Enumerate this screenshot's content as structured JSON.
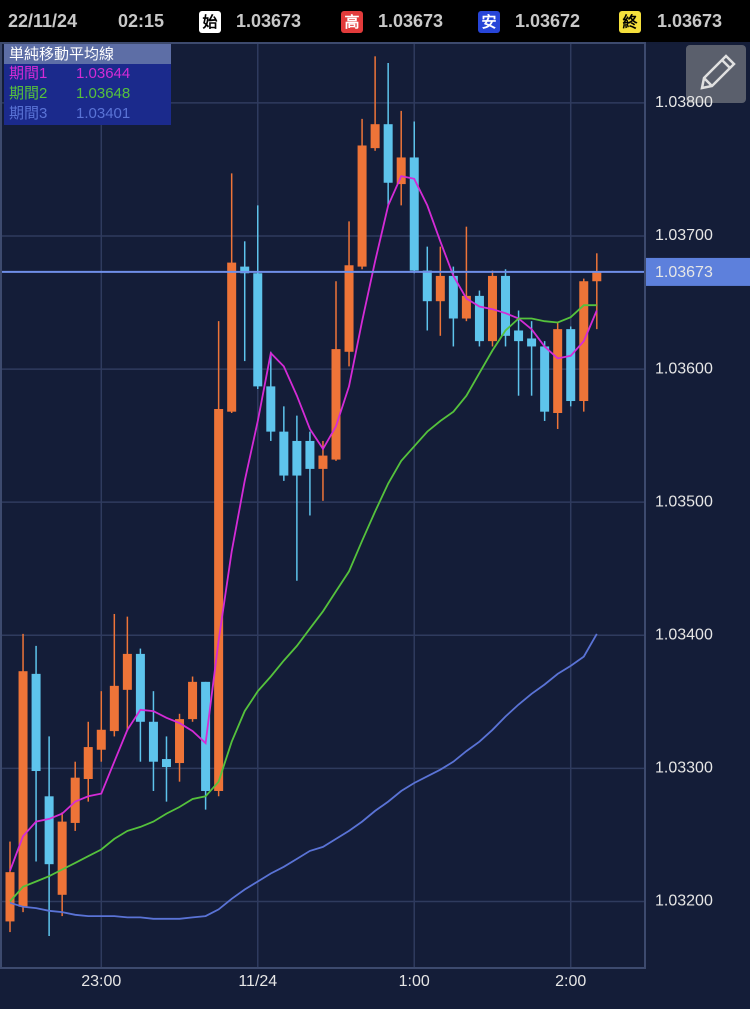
{
  "header": {
    "date": "22/11/24",
    "time": "02:15",
    "open_label": "始",
    "open": 1.03673,
    "high_label": "高",
    "high": 1.03673,
    "low_label": "安",
    "low": 1.03672,
    "close_label": "終",
    "close": 1.03673
  },
  "chart_data": {
    "type": "candlestick",
    "categories": [
      null,
      null,
      null,
      null,
      null,
      null,
      null,
      "23:00",
      null,
      null,
      null,
      null,
      null,
      null,
      null,
      null,
      null,
      null,
      null,
      "11/24",
      null,
      null,
      null,
      null,
      null,
      null,
      null,
      null,
      null,
      null,
      null,
      "1:00",
      null,
      null,
      null,
      null,
      null,
      null,
      null,
      null,
      null,
      null,
      null,
      "2:00",
      null,
      null
    ],
    "open": [
      1.03185,
      1.03196,
      1.03371,
      1.03279,
      1.03205,
      1.03259,
      1.03292,
      1.03314,
      1.03328,
      1.03359,
      1.03386,
      1.03335,
      1.03307,
      1.03304,
      1.03337,
      1.03365,
      1.03283,
      1.03568,
      1.03677,
      1.03672,
      1.03587,
      1.03553,
      1.03546,
      1.03546,
      1.03525,
      1.03532,
      1.03613,
      1.03677,
      1.03766,
      1.03784,
      1.03739,
      1.03759,
      1.03674,
      1.03651,
      1.0367,
      1.03638,
      1.03655,
      1.03621,
      1.0367,
      1.03629,
      1.03623,
      1.03617,
      1.03567,
      1.0363,
      1.03576,
      1.03666
    ],
    "high": [
      1.03245,
      1.03401,
      1.03392,
      1.03324,
      1.03267,
      1.03305,
      1.03335,
      1.03358,
      1.03416,
      1.03414,
      1.0339,
      1.03358,
      1.03324,
      1.03341,
      1.03369,
      1.03365,
      1.03636,
      1.03747,
      1.03696,
      1.03723,
      1.03613,
      1.03572,
      1.03565,
      1.03553,
      1.03546,
      1.03666,
      1.03711,
      1.03788,
      1.03835,
      1.0383,
      1.03794,
      1.03786,
      1.03692,
      1.03692,
      1.03677,
      1.03707,
      1.03659,
      1.03674,
      1.03675,
      1.03644,
      1.03636,
      1.03621,
      1.03635,
      1.03632,
      1.03668,
      1.03687
    ],
    "low": [
      1.03177,
      1.03192,
      1.0323,
      1.03174,
      1.03189,
      1.03253,
      1.03275,
      1.03305,
      1.03324,
      1.03328,
      1.03305,
      1.03283,
      1.03275,
      1.0329,
      1.03335,
      1.03269,
      1.03279,
      1.03567,
      1.03606,
      1.03585,
      1.03546,
      1.03516,
      1.03441,
      1.0349,
      1.03501,
      1.03531,
      1.03602,
      1.03675,
      1.03764,
      1.03723,
      1.03723,
      1.03672,
      1.03629,
      1.03625,
      1.03617,
      1.03636,
      1.03617,
      1.03617,
      1.03617,
      1.0358,
      1.0358,
      1.03561,
      1.03555,
      1.03572,
      1.03568,
      1.0363
    ],
    "close": [
      1.03222,
      1.03373,
      1.03298,
      1.03228,
      1.0326,
      1.03293,
      1.03316,
      1.03329,
      1.03362,
      1.03386,
      1.03335,
      1.03305,
      1.03301,
      1.03337,
      1.03365,
      1.03283,
      1.0357,
      1.0368,
      1.03672,
      1.03587,
      1.03553,
      1.0352,
      1.0352,
      1.03525,
      1.03535,
      1.03615,
      1.03678,
      1.03768,
      1.03784,
      1.0374,
      1.03759,
      1.03674,
      1.03651,
      1.0367,
      1.03638,
      1.03655,
      1.03621,
      1.0367,
      1.03625,
      1.03621,
      1.03617,
      1.03568,
      1.0363,
      1.03576,
      1.03666,
      1.03673
    ],
    "up_color": "#ee7438",
    "down_color": "#5ec4ec",
    "ylim": [
      1.0315,
      1.03845
    ],
    "yticks": [
      {
        "value": 1.032,
        "label": "1.03200"
      },
      {
        "value": 1.033,
        "label": "1.03300"
      },
      {
        "value": 1.034,
        "label": "1.03400"
      },
      {
        "value": 1.035,
        "label": "1.03500"
      },
      {
        "value": 1.036,
        "label": "1.03600"
      },
      {
        "value": 1.037,
        "label": "1.03700"
      },
      {
        "value": 1.038,
        "label": "1.03800"
      }
    ],
    "grid": true,
    "legend_title": "単純移動平均線",
    "series": [
      {
        "name": "期間1",
        "color": "#d42bd6",
        "values": [
          1.03223,
          1.03249,
          1.0326,
          1.03262,
          1.03266,
          1.03275,
          1.03279,
          1.03281,
          1.03305,
          1.03329,
          1.03344,
          1.03343,
          1.03338,
          1.03334,
          1.03328,
          1.03319,
          1.03396,
          1.03463,
          1.03516,
          1.03561,
          1.03612,
          1.03602,
          1.0358,
          1.03555,
          1.0354,
          1.03557,
          1.03587,
          1.03636,
          1.03681,
          1.03723,
          1.03745,
          1.03743,
          1.03723,
          1.03696,
          1.0367,
          1.03653,
          1.03647,
          1.03645,
          1.03642,
          1.03638,
          1.0363,
          1.03617,
          1.03608,
          1.0361,
          1.03621,
          1.03644
        ]
      },
      {
        "name": "期間2",
        "color": "#55c23c",
        "values": [
          1.032,
          1.03211,
          1.03215,
          1.03219,
          1.03224,
          1.03229,
          1.03234,
          1.03239,
          1.03247,
          1.03253,
          1.03256,
          1.0326,
          1.03266,
          1.03271,
          1.03277,
          1.03279,
          1.0329,
          1.0332,
          1.03343,
          1.03358,
          1.03369,
          1.03381,
          1.03392,
          1.03405,
          1.03418,
          1.03433,
          1.03448,
          1.03471,
          1.03493,
          1.03514,
          1.03531,
          1.03542,
          1.03553,
          1.03561,
          1.03568,
          1.0358,
          1.03597,
          1.03614,
          1.03629,
          1.03638,
          1.03638,
          1.03636,
          1.03635,
          1.03639,
          1.03648,
          1.03648
        ]
      },
      {
        "name": "期間3",
        "color": "#5a73d6",
        "values": [
          1.03199,
          1.03196,
          1.03195,
          1.03193,
          1.03192,
          1.0319,
          1.03189,
          1.03189,
          1.03189,
          1.03188,
          1.03188,
          1.03187,
          1.03187,
          1.03187,
          1.03188,
          1.03189,
          1.03194,
          1.03202,
          1.03209,
          1.03215,
          1.03221,
          1.03226,
          1.03232,
          1.03238,
          1.03241,
          1.03247,
          1.03253,
          1.0326,
          1.03268,
          1.03275,
          1.03283,
          1.03289,
          1.03294,
          1.03299,
          1.03305,
          1.03313,
          1.0332,
          1.03329,
          1.03339,
          1.03348,
          1.03356,
          1.03363,
          1.03371,
          1.03377,
          1.03384,
          1.03401
        ]
      }
    ]
  }
}
